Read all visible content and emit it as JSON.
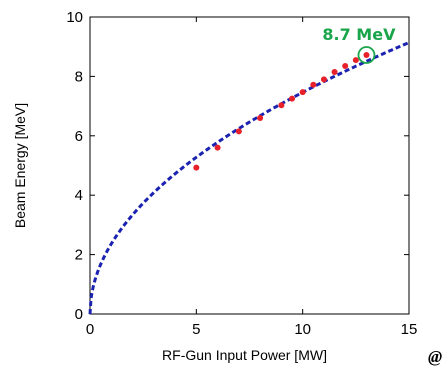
{
  "chart_data": {
    "type": "scatter",
    "xlabel": "RF-Gun Input Power [MW]",
    "ylabel": "Beam Energy [MeV]",
    "xlim": [
      0,
      15
    ],
    "ylim": [
      0,
      10
    ],
    "xticks": [
      "0",
      "5",
      "10",
      "15"
    ],
    "yticks": [
      "0",
      "2",
      "4",
      "6",
      "8",
      "10"
    ],
    "series": [
      {
        "style": "points",
        "x": [
          5,
          6,
          7,
          8,
          9,
          9.5,
          10,
          10.5,
          11,
          11.5,
          12,
          12.5,
          13
        ],
        "y": [
          4.93,
          5.6,
          6.15,
          6.6,
          7.03,
          7.25,
          7.47,
          7.72,
          7.9,
          8.15,
          8.35,
          8.55,
          8.72
        ]
      },
      {
        "style": "dashed-fit",
        "formula": "y = 2.36 * sqrt(x)"
      }
    ],
    "annotation": {
      "text": "8.7 MeV",
      "x": 13,
      "y": 8.72
    },
    "colors": {
      "points": "#e8202a",
      "fit": "#1b22b0",
      "annotation": "#1aa54a"
    }
  },
  "corner_text": "@"
}
